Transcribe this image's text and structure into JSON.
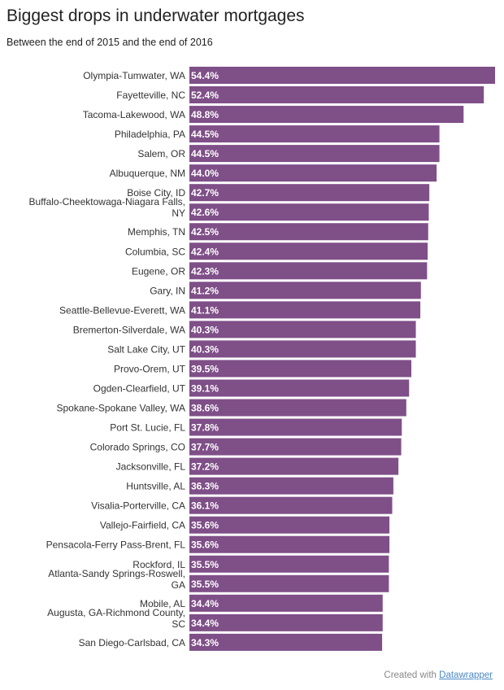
{
  "title": "Biggest drops in underwater mortgages",
  "subtitle": "Between the end of 2015 and the end of 2016",
  "footer": {
    "prefix": "Created with ",
    "link": "Datawrapper"
  },
  "colors": {
    "bar": "#7f4f88",
    "bar_label": "#ffffff",
    "row_label": "#333333"
  },
  "chart_data": {
    "type": "bar",
    "orientation": "horizontal",
    "value_format": "percent, one decimal",
    "xlim": [
      0,
      54.4
    ],
    "grid": false,
    "legend": "none",
    "categories": [
      "Olympia-Tumwater, WA",
      "Fayetteville, NC",
      "Tacoma-Lakewood, WA",
      "Philadelphia, PA",
      "Salem, OR",
      "Albuquerque, NM",
      "Boise City, ID",
      "Buffalo-Cheektowaga-Niagara Falls, NY",
      "Memphis, TN",
      "Columbia, SC",
      "Eugene, OR",
      "Gary, IN",
      "Seattle-Bellevue-Everett, WA",
      "Bremerton-Silverdale, WA",
      "Salt Lake City, UT",
      "Provo-Orem, UT",
      "Ogden-Clearfield, UT",
      "Spokane-Spokane Valley, WA",
      "Port St. Lucie, FL",
      "Colorado Springs, CO",
      "Jacksonville, FL",
      "Huntsville, AL",
      "Visalia-Porterville, CA",
      "Vallejo-Fairfield, CA",
      "Pensacola-Ferry Pass-Brent, FL",
      "Rockford, IL",
      "Atlanta-Sandy Springs-Roswell, GA",
      "Mobile, AL",
      "Augusta, GA-Richmond County, SC",
      "San Diego-Carlsbad, CA"
    ],
    "values": [
      54.4,
      52.4,
      48.8,
      44.5,
      44.5,
      44.0,
      42.7,
      42.6,
      42.5,
      42.4,
      42.3,
      41.2,
      41.1,
      40.3,
      40.3,
      39.5,
      39.1,
      38.6,
      37.8,
      37.7,
      37.2,
      36.3,
      36.1,
      35.6,
      35.6,
      35.5,
      35.5,
      34.4,
      34.4,
      34.3
    ],
    "labels": [
      "54.4%",
      "52.4%",
      "48.8%",
      "44.5%",
      "44.5%",
      "44.0%",
      "42.7%",
      "42.6%",
      "42.5%",
      "42.4%",
      "42.3%",
      "41.2%",
      "41.1%",
      "40.3%",
      "40.3%",
      "39.5%",
      "39.1%",
      "38.6%",
      "37.8%",
      "37.7%",
      "37.2%",
      "36.3%",
      "36.1%",
      "35.6%",
      "35.6%",
      "35.5%",
      "35.5%",
      "34.4%",
      "34.4%",
      "34.3%"
    ]
  }
}
